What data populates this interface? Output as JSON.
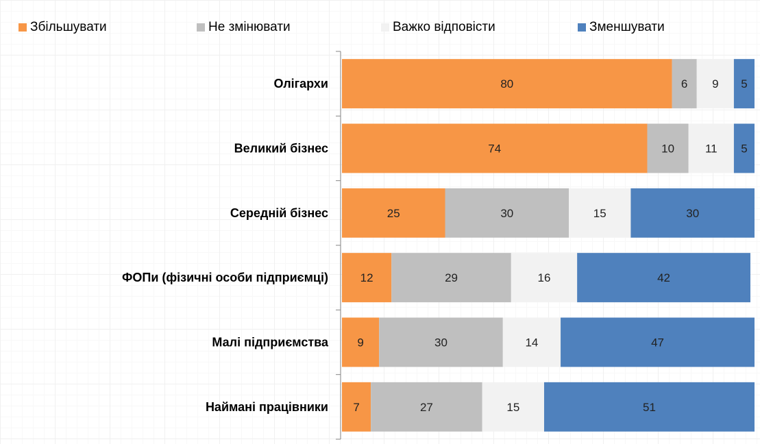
{
  "chart_data": {
    "type": "bar",
    "orientation": "horizontal",
    "stacked": "percent",
    "categories": [
      "Олігархи",
      "Великий бізнес",
      "Середній бізнес",
      "ФОПи (фізичні особи підприємці)",
      "Малі підприємства",
      "Наймані працівники"
    ],
    "series": [
      {
        "name": "Збільшувати",
        "color": "#f79646",
        "values": [
          80,
          74,
          25,
          12,
          9,
          7
        ]
      },
      {
        "name": "Не змінювати",
        "color": "#bfbfbf",
        "values": [
          6,
          10,
          30,
          29,
          30,
          27
        ]
      },
      {
        "name": "Важко відповісти",
        "color": "#f2f2f2",
        "values": [
          9,
          11,
          15,
          16,
          14,
          15
        ]
      },
      {
        "name": "Зменшувати",
        "color": "#4f81bd",
        "values": [
          5,
          5,
          30,
          42,
          47,
          51
        ]
      }
    ],
    "xlim": [
      0,
      100
    ],
    "legend": "top",
    "data_labels": true,
    "grid": false
  }
}
